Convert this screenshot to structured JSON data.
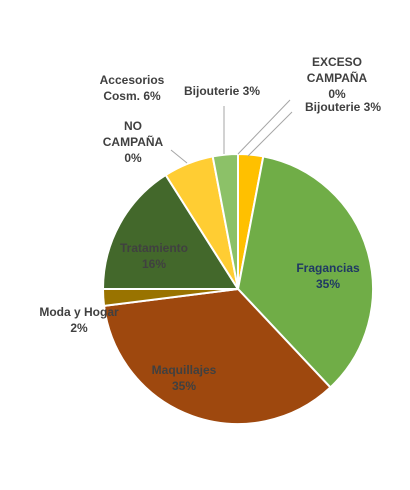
{
  "chart_data": {
    "type": "pie",
    "title": "",
    "slices": [
      {
        "key": "bij1",
        "lines": [
          "Bijouterie 3%"
        ],
        "value": 3,
        "color": "#ffc000",
        "label_color": "#404040"
      },
      {
        "key": "fragancias",
        "lines": [
          "Fragancias",
          "35%"
        ],
        "value": 35,
        "color": "#70ad47",
        "label_color": "#1f3864"
      },
      {
        "key": "maquillajes",
        "lines": [
          "Maquillajes",
          "35%"
        ],
        "value": 35,
        "color": "#9e480e",
        "label_color": "#404040"
      },
      {
        "key": "moda",
        "lines": [
          "Moda y Hogar",
          "2%"
        ],
        "value": 2,
        "color": "#997300",
        "label_color": "#404040"
      },
      {
        "key": "tratamiento",
        "lines": [
          "Tratamiento",
          "16%"
        ],
        "value": 16,
        "color": "#43682b",
        "label_color": "#404040"
      },
      {
        "key": "nocamp",
        "lines": [
          "NO",
          "CAMPAÑA",
          "0%"
        ],
        "value": 0,
        "color": "#ffc000",
        "label_color": "#404040"
      },
      {
        "key": "accesorios",
        "lines": [
          "Accesorios",
          "Cosm. 6%"
        ],
        "value": 6,
        "color": "#ffcd33",
        "label_color": "#404040"
      },
      {
        "key": "bij2",
        "lines": [
          "Bijouterie 3%"
        ],
        "value": 3,
        "color": "#8cc168",
        "label_color": "#404040"
      },
      {
        "key": "exceso",
        "lines": [
          "EXCESO",
          "CAMPAÑA",
          "0%"
        ],
        "value": 0,
        "color": "#a5a5a5",
        "label_color": "#404040"
      }
    ]
  }
}
